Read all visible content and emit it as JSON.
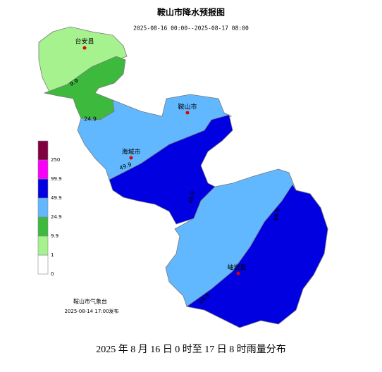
{
  "header": {
    "title": "鞍山市降水预报图",
    "subtitle": "2025-08-16 00:00--2025-08-17 08:00"
  },
  "cities": [
    {
      "label": "台安县"
    },
    {
      "label": "鞍山市"
    },
    {
      "label": "海城市"
    },
    {
      "label": "岫岩县"
    }
  ],
  "contour_labels": [
    "9.9",
    "24.9",
    "49.9",
    "49.9",
    "49.9",
    "49.9"
  ],
  "legend": {
    "levels": [
      {
        "label": "0",
        "color": "#ffffff"
      },
      {
        "label": "1",
        "color": "#a6f28f"
      },
      {
        "label": "9.9",
        "color": "#3dba3d"
      },
      {
        "label": "24.9",
        "color": "#61b8ff"
      },
      {
        "label": "49.9",
        "color": "#0000e1"
      },
      {
        "label": "99.9",
        "color": "#fa00fa"
      },
      {
        "label": "250",
        "color": "#800040"
      }
    ]
  },
  "footer": {
    "agency": "鞍山市气象台",
    "issued": "2025-08-14 17:00发布"
  },
  "caption": "2025 年 8 月 16 日 0 时至 17 日 8 时雨量分布"
}
